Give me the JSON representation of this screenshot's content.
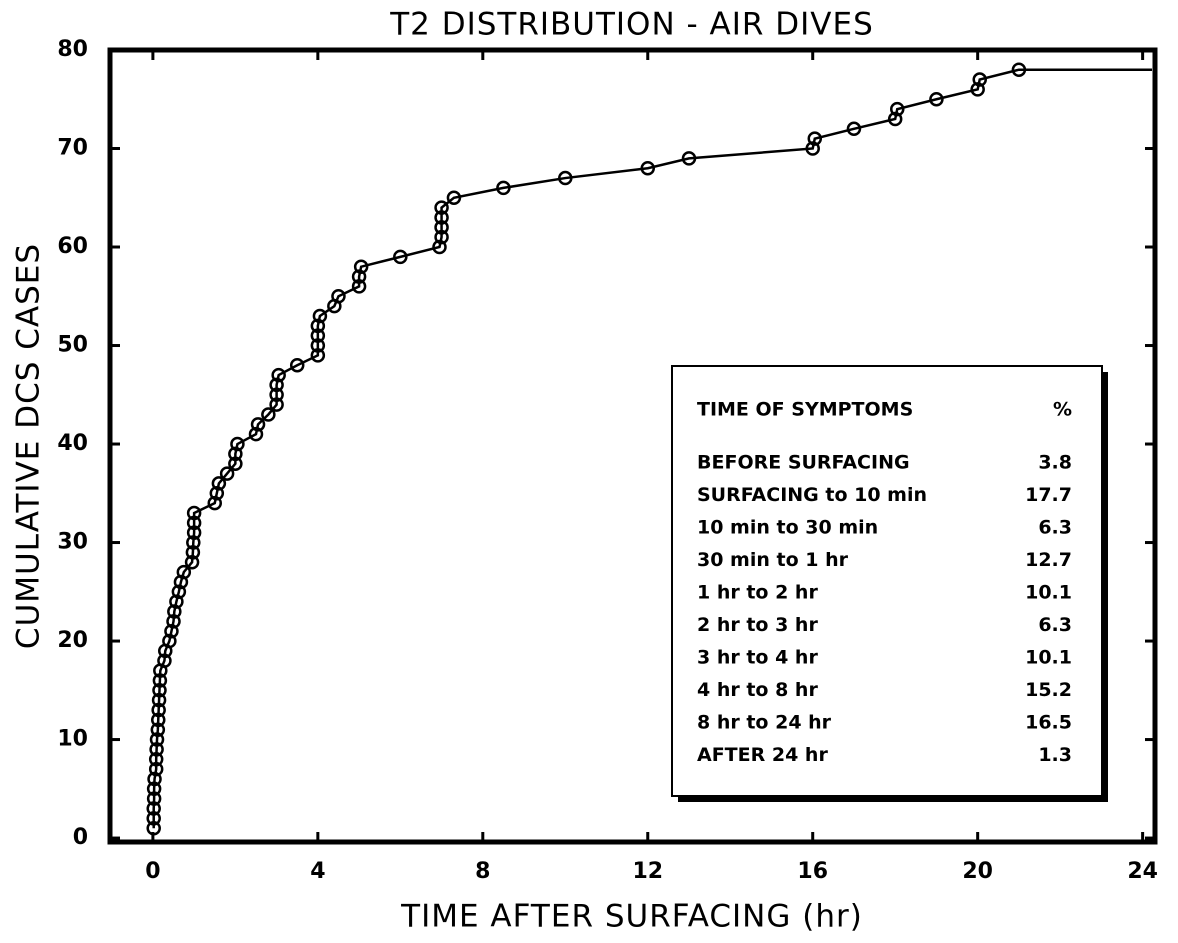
{
  "chart_data": {
    "type": "line",
    "title": "T2 DISTRIBUTION - AIR DIVES",
    "xlabel": "TIME AFTER SURFACING (hr)",
    "ylabel": "CUMULATIVE DCS CASES",
    "xlim": [
      -1.04,
      24.3
    ],
    "ylim": [
      -0.4,
      80
    ],
    "xticks": [
      0,
      4,
      8,
      12,
      16,
      20,
      24
    ],
    "yticks": [
      0,
      10,
      20,
      30,
      40,
      50,
      60,
      70,
      80
    ],
    "series": [
      {
        "color": "#000000",
        "x": [
          0.02,
          0.02,
          0.02,
          0.03,
          0.03,
          0.04,
          0.08,
          0.08,
          0.09,
          0.1,
          0.12,
          0.13,
          0.14,
          0.15,
          0.16,
          0.17,
          0.18,
          0.28,
          0.3,
          0.4,
          0.45,
          0.5,
          0.52,
          0.57,
          0.63,
          0.68,
          0.75,
          0.95,
          0.97,
          0.98,
          1.0,
          1.0,
          1.0,
          1.5,
          1.55,
          1.6,
          1.8,
          2.0,
          2.0,
          2.05,
          2.5,
          2.55,
          2.8,
          3.0,
          3.0,
          3.0,
          3.05,
          3.5,
          4.0,
          4.0,
          4.0,
          4.0,
          4.05,
          4.4,
          4.5,
          5.0,
          5.0,
          5.05,
          6.0,
          6.95,
          7.0,
          7.0,
          7.0,
          7.0,
          7.3,
          8.5,
          10.0,
          12.0,
          13.0,
          16.0,
          16.05,
          17.0,
          18.0,
          18.05,
          19.0,
          20.0,
          20.05,
          21.0
        ],
        "values": [
          1,
          2,
          3,
          4,
          5,
          6,
          7,
          8,
          9,
          10,
          11,
          12,
          13,
          14,
          15,
          16,
          17,
          18,
          19,
          20,
          21,
          22,
          23,
          24,
          25,
          26,
          27,
          28,
          29,
          30,
          31,
          32,
          33,
          34,
          35,
          36,
          37,
          38,
          39,
          40,
          41,
          42,
          43,
          44,
          45,
          46,
          47,
          48,
          49,
          50,
          51,
          52,
          53,
          54,
          55,
          56,
          57,
          58,
          59,
          60,
          61,
          62,
          63,
          64,
          65,
          66,
          67,
          68,
          69,
          70,
          71,
          72,
          73,
          74,
          75,
          76,
          77,
          78
        ]
      }
    ],
    "table": {
      "header": [
        "TIME OF SYMPTOMS",
        "%"
      ],
      "rows": [
        [
          "BEFORE SURFACING",
          "3.8"
        ],
        [
          "SURFACING to 10 min",
          "17.7"
        ],
        [
          "10 min to 30 min",
          "6.3"
        ],
        [
          "30 min to 1 hr",
          "12.7"
        ],
        [
          "1 hr to 2 hr",
          "10.1"
        ],
        [
          "2 hr to 3 hr",
          "6.3"
        ],
        [
          "3 hr to 4 hr",
          "10.1"
        ],
        [
          "4 hr to 8 hr",
          "15.2"
        ],
        [
          "8 hr to 24 hr",
          "16.5"
        ],
        [
          "AFTER 24 hr",
          "1.3"
        ]
      ]
    }
  }
}
